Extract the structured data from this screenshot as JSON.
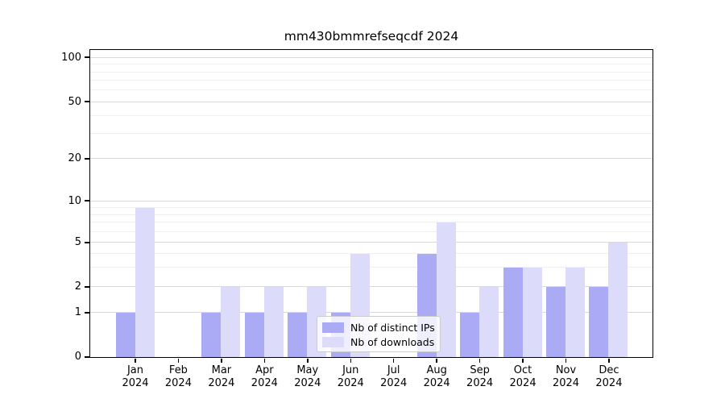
{
  "title": "mm430bmmrefseqcdf 2024",
  "chart_data": {
    "type": "bar",
    "title": "mm430bmmrefseqcdf 2024",
    "categories": [
      "Jan",
      "Feb",
      "Mar",
      "Apr",
      "May",
      "Jun",
      "Jul",
      "Aug",
      "Sep",
      "Oct",
      "Nov",
      "Dec"
    ],
    "year": "2024",
    "series": [
      {
        "name": "Nb of distinct IPs",
        "color": "#aaaaf5",
        "values": [
          1,
          0,
          1,
          1,
          1,
          1,
          0,
          4,
          1,
          3,
          2,
          2
        ]
      },
      {
        "name": "Nb of downloads",
        "color": "#dcdcfa",
        "values": [
          9,
          0,
          2,
          2,
          2,
          4,
          0,
          7,
          2,
          3,
          3,
          5
        ]
      }
    ],
    "y_axis": {
      "scale": "log-like",
      "ticks": [
        0,
        1,
        2,
        5,
        10,
        20,
        50,
        100
      ],
      "minor_gridlines": [
        3,
        4,
        6,
        7,
        8,
        9,
        30,
        40,
        60,
        70,
        80,
        90
      ],
      "tick_fracs": [
        [
          0,
          0
        ],
        [
          1,
          0.1436
        ],
        [
          2,
          0.2283
        ],
        [
          5,
          0.3727
        ],
        [
          10,
          0.5079
        ],
        [
          20,
          0.6465
        ],
        [
          50,
          0.832
        ],
        [
          100,
          0.9764
        ]
      ]
    },
    "grid": true,
    "legend_position": "lower center"
  }
}
